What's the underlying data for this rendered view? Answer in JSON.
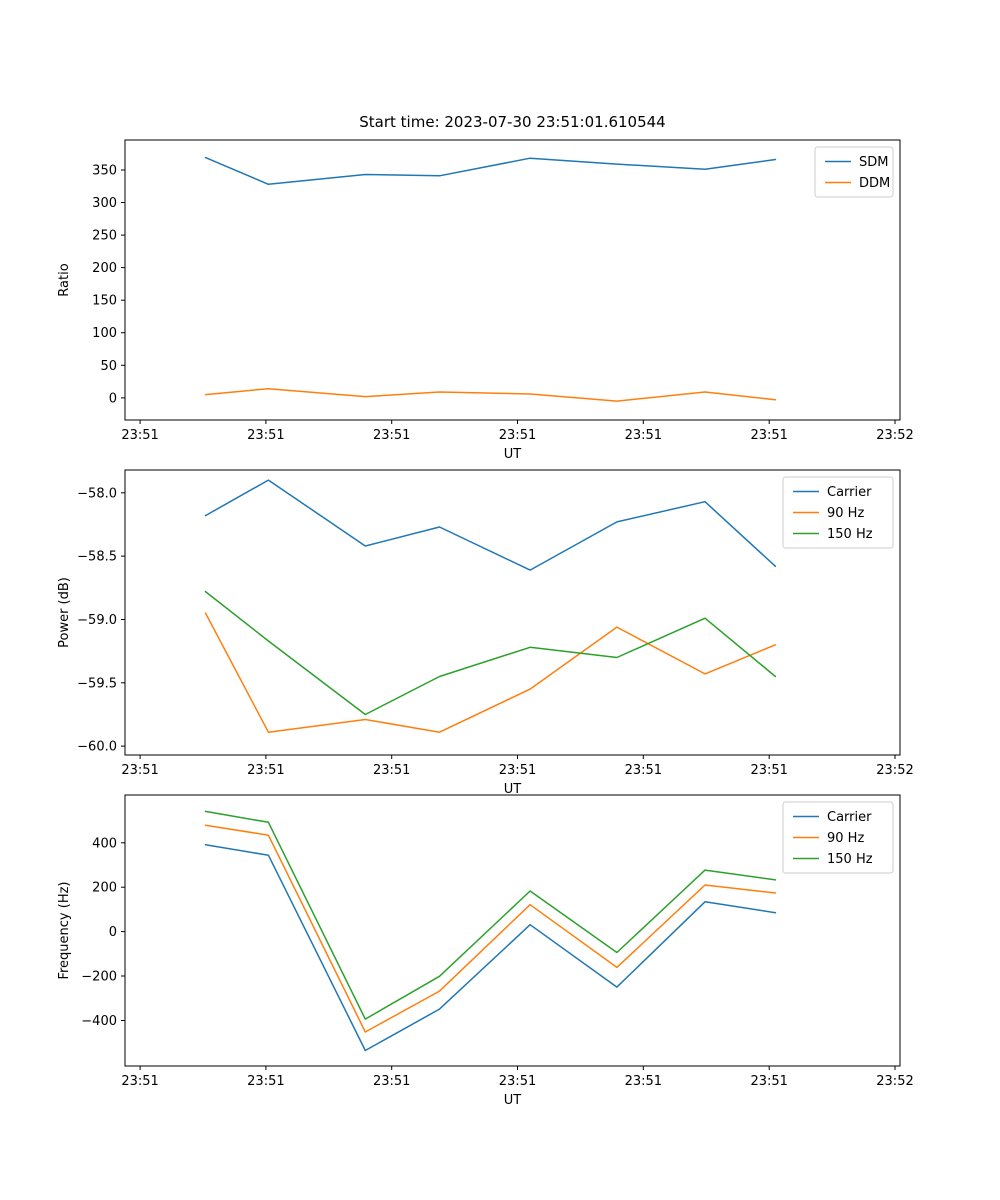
{
  "title": "Start time: 2023-07-30 23:51:01.610544",
  "colors": {
    "blue": "#1f77b4",
    "orange": "#ff7f0e",
    "green": "#2ca02c",
    "axis": "#000000",
    "legend_edge": "#cccccc"
  },
  "chart_data": [
    {
      "type": "line",
      "xlabel": "UT",
      "ylabel": "Ratio",
      "xlim": [
        -1.2,
        60.4
      ],
      "ylim": [
        -34,
        396
      ],
      "xticks": [
        0,
        10,
        20,
        30,
        40,
        50,
        60
      ],
      "xticklabels": [
        "23:51",
        "23:51",
        "23:51",
        "23:51",
        "23:51",
        "23:51",
        "23:52"
      ],
      "yticks": [
        0,
        50,
        100,
        150,
        200,
        250,
        300,
        350
      ],
      "yticklabels": [
        "0",
        "50",
        "100",
        "150",
        "200",
        "250",
        "300",
        "350"
      ],
      "grid": false,
      "legend": {
        "loc": "upper right"
      },
      "x": [
        5.2,
        10.2,
        17.9,
        23.8,
        31.0,
        37.9,
        44.9,
        50.5
      ],
      "series": [
        {
          "name": "SDM",
          "color": "#1f77b4",
          "values": [
            369,
            328,
            343,
            341,
            368,
            359,
            351,
            366
          ]
        },
        {
          "name": "DDM",
          "color": "#ff7f0e",
          "values": [
            5,
            14,
            2,
            9,
            6,
            -5,
            9,
            -3
          ]
        }
      ]
    },
    {
      "type": "line",
      "xlabel": "UT",
      "ylabel": "Power (dB)",
      "xlim": [
        -1.2,
        60.4
      ],
      "ylim": [
        -60.07,
        -57.82
      ],
      "xticks": [
        0,
        10,
        20,
        30,
        40,
        50,
        60
      ],
      "xticklabels": [
        "23:51",
        "23:51",
        "23:51",
        "23:51",
        "23:51",
        "23:51",
        "23:52"
      ],
      "yticks": [
        -60.0,
        -59.5,
        -59.0,
        -58.5,
        -58.0
      ],
      "yticklabels": [
        "−60.0",
        "−59.5",
        "−59.0",
        "−58.5",
        "−58.0"
      ],
      "grid": false,
      "legend": {
        "loc": "upper right"
      },
      "x": [
        5.2,
        10.2,
        17.9,
        23.8,
        31.0,
        37.9,
        44.9,
        50.5
      ],
      "series": [
        {
          "name": "Carrier",
          "color": "#1f77b4",
          "values": [
            -58.18,
            -57.9,
            -58.42,
            -58.27,
            -58.61,
            -58.23,
            -58.07,
            -58.58
          ]
        },
        {
          "name": "90 Hz",
          "color": "#ff7f0e",
          "values": [
            -58.95,
            -59.89,
            -59.79,
            -59.89,
            -59.55,
            -59.06,
            -59.43,
            -59.2
          ]
        },
        {
          "name": "150 Hz",
          "color": "#2ca02c",
          "values": [
            -58.78,
            -59.17,
            -59.75,
            -59.45,
            -59.22,
            -59.3,
            -58.99,
            -59.45
          ]
        }
      ]
    },
    {
      "type": "line",
      "xlabel": "UT",
      "ylabel": "Frequency (Hz)",
      "xlim": [
        -1.2,
        60.4
      ],
      "ylim": [
        -605,
        615
      ],
      "xticks": [
        0,
        10,
        20,
        30,
        40,
        50,
        60
      ],
      "xticklabels": [
        "23:51",
        "23:51",
        "23:51",
        "23:51",
        "23:51",
        "23:51",
        "23:52"
      ],
      "yticks": [
        -400,
        -200,
        0,
        200,
        400
      ],
      "yticklabels": [
        "−400",
        "−200",
        "0",
        "200",
        "400"
      ],
      "grid": false,
      "legend": {
        "loc": "upper right"
      },
      "x": [
        5.2,
        10.2,
        17.9,
        23.8,
        31.0,
        37.9,
        44.9,
        50.5
      ],
      "series": [
        {
          "name": "Carrier",
          "color": "#1f77b4",
          "values": [
            391,
            344,
            -535,
            -349,
            31,
            -250,
            134,
            85
          ]
        },
        {
          "name": "90 Hz",
          "color": "#ff7f0e",
          "values": [
            479,
            434,
            -452,
            -268,
            121,
            -161,
            210,
            174
          ]
        },
        {
          "name": "150 Hz",
          "color": "#2ca02c",
          "values": [
            541,
            492,
            -394,
            -201,
            183,
            -94,
            277,
            233
          ]
        }
      ]
    }
  ]
}
